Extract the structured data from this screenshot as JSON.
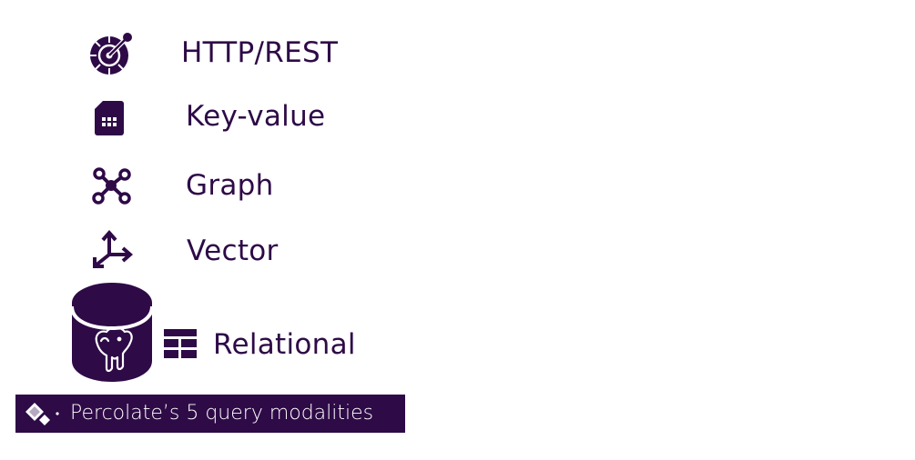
{
  "colors": {
    "primary": "#2e0a47",
    "background": "#ffffff",
    "caption_text": "#ffffff"
  },
  "modalities": [
    {
      "label": "HTTP/REST",
      "icon": "openapi-icon"
    },
    {
      "label": "Key-value",
      "icon": "sim-card-icon"
    },
    {
      "label": "Graph",
      "icon": "graph-nodes-icon"
    },
    {
      "label": "Vector",
      "icon": "vector-axes-icon"
    },
    {
      "label": "Relational",
      "icon": "table-icon"
    }
  ],
  "database_icon": "postgres-database-icon",
  "caption": {
    "text": "Percolate’s 5 query modalities",
    "logo": "percolate-diamond-logo"
  }
}
